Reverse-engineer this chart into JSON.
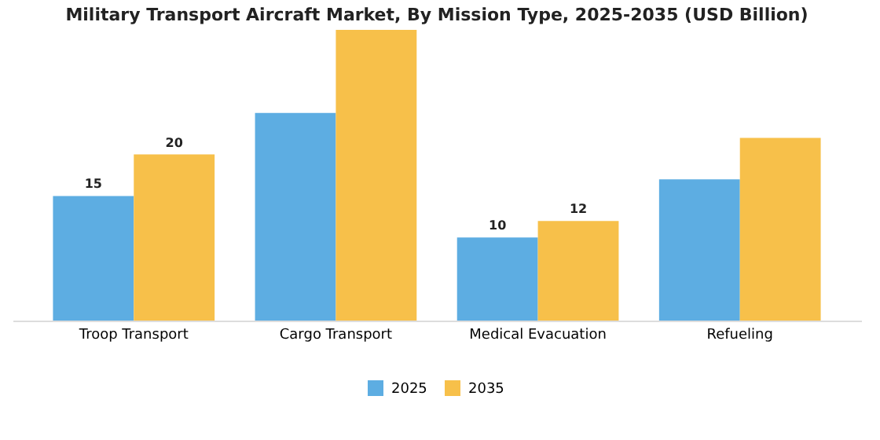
{
  "chart_data": {
    "type": "bar",
    "title": "Military Transport Aircraft Market, By Mission Type, 2025-2035 (USD Billion)",
    "categories": [
      "Troop Transport",
      "Cargo Transport",
      "Medical Evacuation",
      "Refueling"
    ],
    "series": [
      {
        "name": "2025",
        "color": "#5dade2",
        "values": [
          15,
          25,
          10,
          17
        ],
        "value_labels": [
          "15",
          null,
          "10",
          null
        ]
      },
      {
        "name": "2035",
        "color": "#f7c04a",
        "values": [
          20,
          35,
          12,
          22
        ],
        "value_labels": [
          "20",
          null,
          "12",
          null
        ]
      }
    ],
    "tick_labels": "x",
    "grid": false,
    "legend": "bottom"
  }
}
